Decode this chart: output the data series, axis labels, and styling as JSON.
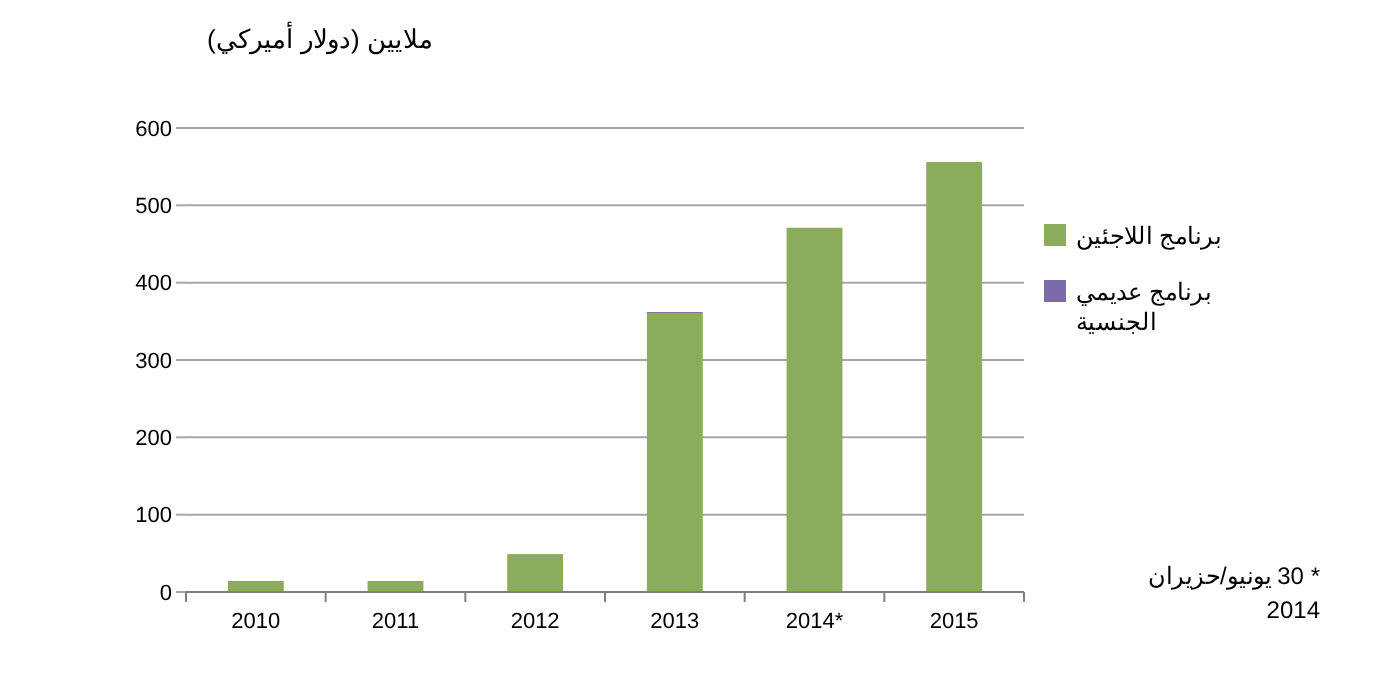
{
  "chart_data": {
    "type": "bar",
    "stacked": true,
    "ylabel": "ملايين (دولار أميركي)",
    "categories": [
      "2010",
      "2011",
      "2012",
      "2013",
      "2014*",
      "2015"
    ],
    "series": [
      {
        "name": "برنامج اللاجئين",
        "color": "#8aac5c",
        "values": [
          13,
          13,
          49,
          360,
          471,
          556
        ]
      },
      {
        "name": "برنامج عديمي الجنسية",
        "color": "#7b6ba6",
        "values": [
          1,
          1,
          null,
          2,
          null,
          null
        ]
      }
    ],
    "ylim": [
      0,
      600
    ],
    "yticks": [
      0,
      100,
      200,
      300,
      400,
      500,
      600
    ],
    "grid": "y",
    "legend": "right",
    "annotations": [
      "* 30 يونيو/حزيران 2014"
    ]
  }
}
